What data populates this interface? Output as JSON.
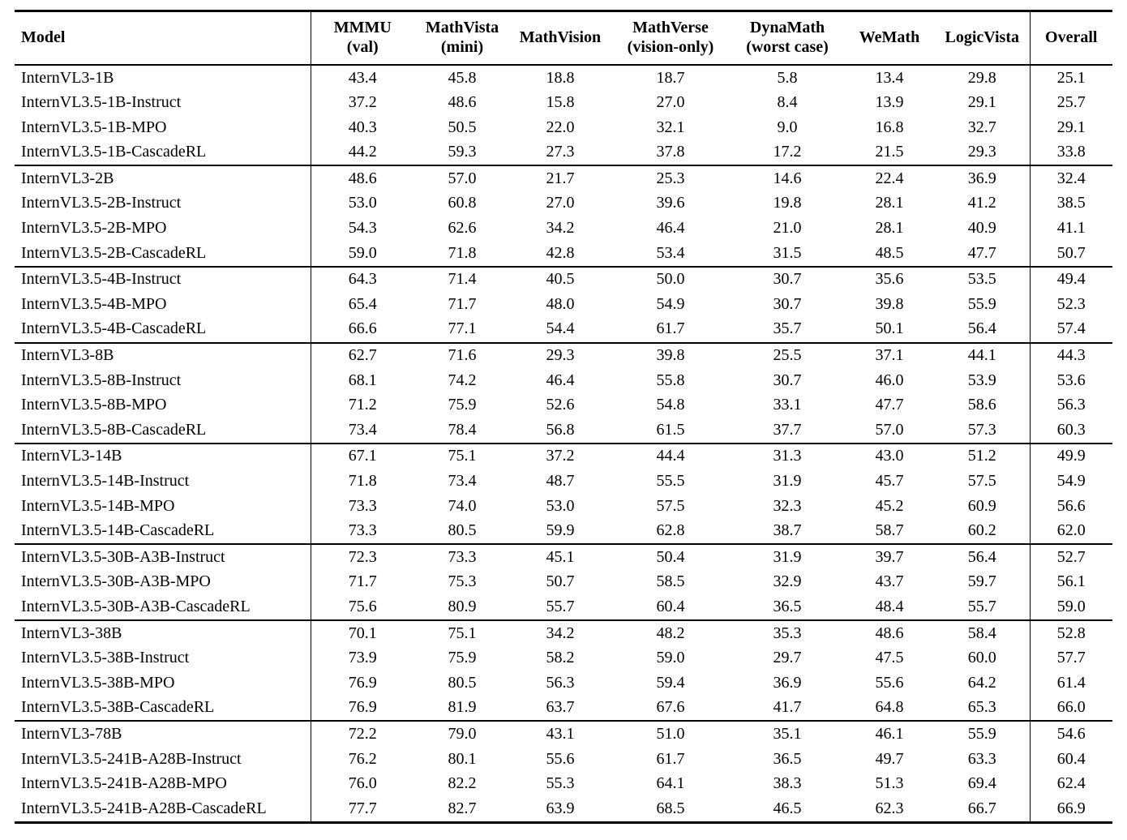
{
  "table": {
    "columns": [
      {
        "label": "Model",
        "sublabel": ""
      },
      {
        "label": "MMMU",
        "sublabel": "(val)"
      },
      {
        "label": "MathVista",
        "sublabel": "(mini)"
      },
      {
        "label": "MathVision",
        "sublabel": ""
      },
      {
        "label": "MathVerse",
        "sublabel": "(vision-only)"
      },
      {
        "label": "DynaMath",
        "sublabel": "(worst case)"
      },
      {
        "label": "WeMath",
        "sublabel": ""
      },
      {
        "label": "LogicVista",
        "sublabel": ""
      },
      {
        "label": "Overall",
        "sublabel": ""
      }
    ],
    "groups": [
      {
        "rows": [
          {
            "model": "InternVL3-1B",
            "scores": [
              "43.4",
              "45.8",
              "18.8",
              "18.7",
              "5.8",
              "13.4",
              "29.8",
              "25.1"
            ]
          },
          {
            "model": "InternVL3.5-1B-Instruct",
            "scores": [
              "37.2",
              "48.6",
              "15.8",
              "27.0",
              "8.4",
              "13.9",
              "29.1",
              "25.7"
            ]
          },
          {
            "model": "InternVL3.5-1B-MPO",
            "scores": [
              "40.3",
              "50.5",
              "22.0",
              "32.1",
              "9.0",
              "16.8",
              "32.7",
              "29.1"
            ]
          },
          {
            "model": "InternVL3.5-1B-CascadeRL",
            "scores": [
              "44.2",
              "59.3",
              "27.3",
              "37.8",
              "17.2",
              "21.5",
              "29.3",
              "33.8"
            ]
          }
        ]
      },
      {
        "rows": [
          {
            "model": "InternVL3-2B",
            "scores": [
              "48.6",
              "57.0",
              "21.7",
              "25.3",
              "14.6",
              "22.4",
              "36.9",
              "32.4"
            ]
          },
          {
            "model": "InternVL3.5-2B-Instruct",
            "scores": [
              "53.0",
              "60.8",
              "27.0",
              "39.6",
              "19.8",
              "28.1",
              "41.2",
              "38.5"
            ]
          },
          {
            "model": "InternVL3.5-2B-MPO",
            "scores": [
              "54.3",
              "62.6",
              "34.2",
              "46.4",
              "21.0",
              "28.1",
              "40.9",
              "41.1"
            ]
          },
          {
            "model": "InternVL3.5-2B-CascadeRL",
            "scores": [
              "59.0",
              "71.8",
              "42.8",
              "53.4",
              "31.5",
              "48.5",
              "47.7",
              "50.7"
            ]
          }
        ]
      },
      {
        "rows": [
          {
            "model": "InternVL3.5-4B-Instruct",
            "scores": [
              "64.3",
              "71.4",
              "40.5",
              "50.0",
              "30.7",
              "35.6",
              "53.5",
              "49.4"
            ]
          },
          {
            "model": "InternVL3.5-4B-MPO",
            "scores": [
              "65.4",
              "71.7",
              "48.0",
              "54.9",
              "30.7",
              "39.8",
              "55.9",
              "52.3"
            ]
          },
          {
            "model": "InternVL3.5-4B-CascadeRL",
            "scores": [
              "66.6",
              "77.1",
              "54.4",
              "61.7",
              "35.7",
              "50.1",
              "56.4",
              "57.4"
            ]
          }
        ]
      },
      {
        "rows": [
          {
            "model": "InternVL3-8B",
            "scores": [
              "62.7",
              "71.6",
              "29.3",
              "39.8",
              "25.5",
              "37.1",
              "44.1",
              "44.3"
            ]
          },
          {
            "model": "InternVL3.5-8B-Instruct",
            "scores": [
              "68.1",
              "74.2",
              "46.4",
              "55.8",
              "30.7",
              "46.0",
              "53.9",
              "53.6"
            ]
          },
          {
            "model": "InternVL3.5-8B-MPO",
            "scores": [
              "71.2",
              "75.9",
              "52.6",
              "54.8",
              "33.1",
              "47.7",
              "58.6",
              "56.3"
            ]
          },
          {
            "model": "InternVL3.5-8B-CascadeRL",
            "scores": [
              "73.4",
              "78.4",
              "56.8",
              "61.5",
              "37.7",
              "57.0",
              "57.3",
              "60.3"
            ]
          }
        ]
      },
      {
        "rows": [
          {
            "model": "InternVL3-14B",
            "scores": [
              "67.1",
              "75.1",
              "37.2",
              "44.4",
              "31.3",
              "43.0",
              "51.2",
              "49.9"
            ]
          },
          {
            "model": "InternVL3.5-14B-Instruct",
            "scores": [
              "71.8",
              "73.4",
              "48.7",
              "55.5",
              "31.9",
              "45.7",
              "57.5",
              "54.9"
            ]
          },
          {
            "model": "InternVL3.5-14B-MPO",
            "scores": [
              "73.3",
              "74.0",
              "53.0",
              "57.5",
              "32.3",
              "45.2",
              "60.9",
              "56.6"
            ]
          },
          {
            "model": "InternVL3.5-14B-CascadeRL",
            "scores": [
              "73.3",
              "80.5",
              "59.9",
              "62.8",
              "38.7",
              "58.7",
              "60.2",
              "62.0"
            ]
          }
        ]
      },
      {
        "rows": [
          {
            "model": "InternVL3.5-30B-A3B-Instruct",
            "scores": [
              "72.3",
              "73.3",
              "45.1",
              "50.4",
              "31.9",
              "39.7",
              "56.4",
              "52.7"
            ]
          },
          {
            "model": "InternVL3.5-30B-A3B-MPO",
            "scores": [
              "71.7",
              "75.3",
              "50.7",
              "58.5",
              "32.9",
              "43.7",
              "59.7",
              "56.1"
            ]
          },
          {
            "model": "InternVL3.5-30B-A3B-CascadeRL",
            "scores": [
              "75.6",
              "80.9",
              "55.7",
              "60.4",
              "36.5",
              "48.4",
              "55.7",
              "59.0"
            ]
          }
        ]
      },
      {
        "rows": [
          {
            "model": "InternVL3-38B",
            "scores": [
              "70.1",
              "75.1",
              "34.2",
              "48.2",
              "35.3",
              "48.6",
              "58.4",
              "52.8"
            ]
          },
          {
            "model": "InternVL3.5-38B-Instruct",
            "scores": [
              "73.9",
              "75.9",
              "58.2",
              "59.0",
              "29.7",
              "47.5",
              "60.0",
              "57.7"
            ]
          },
          {
            "model": "InternVL3.5-38B-MPO",
            "scores": [
              "76.9",
              "80.5",
              "56.3",
              "59.4",
              "36.9",
              "55.6",
              "64.2",
              "61.4"
            ]
          },
          {
            "model": "InternVL3.5-38B-CascadeRL",
            "scores": [
              "76.9",
              "81.9",
              "63.7",
              "67.6",
              "41.7",
              "64.8",
              "65.3",
              "66.0"
            ]
          }
        ]
      },
      {
        "rows": [
          {
            "model": "InternVL3-78B",
            "scores": [
              "72.2",
              "79.0",
              "43.1",
              "51.0",
              "35.1",
              "46.1",
              "55.9",
              "54.6"
            ]
          },
          {
            "model": "InternVL3.5-241B-A28B-Instruct",
            "scores": [
              "76.2",
              "80.1",
              "55.6",
              "61.7",
              "36.5",
              "49.7",
              "63.3",
              "60.4"
            ]
          },
          {
            "model": "InternVL3.5-241B-A28B-MPO",
            "scores": [
              "76.0",
              "82.2",
              "55.3",
              "64.1",
              "38.3",
              "51.3",
              "69.4",
              "62.4"
            ]
          },
          {
            "model": "InternVL3.5-241B-A28B-CascadeRL",
            "scores": [
              "77.7",
              "82.7",
              "63.9",
              "68.5",
              "46.5",
              "62.3",
              "66.7",
              "66.9"
            ]
          }
        ]
      }
    ]
  }
}
